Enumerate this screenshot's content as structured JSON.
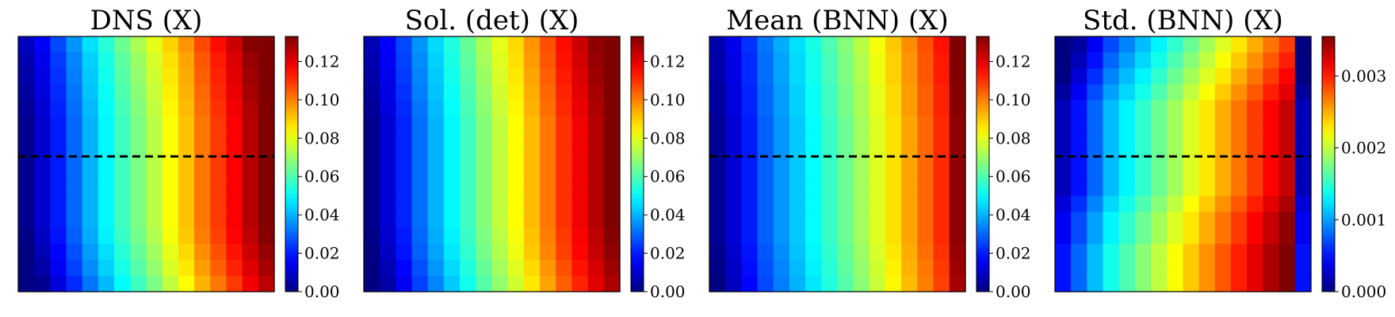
{
  "chart_data": [
    {
      "type": "heatmap",
      "title": "DNS (X)",
      "grid_size": [
        16,
        16
      ],
      "colormap": "jet",
      "vmin": 0.0,
      "vmax": 0.133,
      "colorbar_ticks": [
        "0.00",
        "0.02",
        "0.04",
        "0.06",
        "0.08",
        "0.10",
        "0.12"
      ],
      "colorbar_tick_values": [
        0.0,
        0.02,
        0.04,
        0.06,
        0.08,
        0.1,
        0.12
      ],
      "column_values": [
        0.002,
        0.01,
        0.02,
        0.03,
        0.04,
        0.049,
        0.058,
        0.066,
        0.074,
        0.083,
        0.091,
        0.101,
        0.109,
        0.117,
        0.126,
        0.133
      ],
      "row_offsets": [
        0.006,
        0.004,
        0.003,
        0.002,
        0.001,
        0.0,
        0.0,
        0.0,
        0.0,
        0.0,
        0.0,
        0.0,
        -0.001,
        -0.003,
        -0.005,
        -0.008
      ],
      "dashed_line_fraction": 0.47
    },
    {
      "type": "heatmap",
      "title": "Sol. (det) (X)",
      "grid_size": [
        16,
        16
      ],
      "colormap": "jet",
      "vmin": 0.0,
      "vmax": 0.133,
      "colorbar_ticks": [
        "0.00",
        "0.02",
        "0.04",
        "0.06",
        "0.08",
        "0.10",
        "0.12"
      ],
      "colorbar_tick_values": [
        0.0,
        0.02,
        0.04,
        0.06,
        0.08,
        0.1,
        0.12
      ],
      "column_values": [
        0.002,
        0.011,
        0.021,
        0.031,
        0.04,
        0.049,
        0.058,
        0.067,
        0.075,
        0.083,
        0.092,
        0.101,
        0.11,
        0.118,
        0.126,
        0.133
      ],
      "row_offsets": [
        0.005,
        0.004,
        0.003,
        0.002,
        0.001,
        0.0,
        0.0,
        0.0,
        0.0,
        0.0,
        0.0,
        0.0,
        -0.001,
        -0.002,
        -0.004,
        -0.006
      ],
      "dashed_line_fraction": null
    },
    {
      "type": "heatmap",
      "title": "Mean (BNN) (X)",
      "grid_size": [
        16,
        16
      ],
      "colormap": "jet",
      "vmin": 0.0,
      "vmax": 0.133,
      "colorbar_ticks": [
        "0.00",
        "0.02",
        "0.04",
        "0.06",
        "0.08",
        "0.10",
        "0.12"
      ],
      "colorbar_tick_values": [
        0.0,
        0.02,
        0.04,
        0.06,
        0.08,
        0.1,
        0.12
      ],
      "column_values": [
        0.003,
        0.011,
        0.02,
        0.029,
        0.036,
        0.043,
        0.05,
        0.057,
        0.064,
        0.071,
        0.079,
        0.087,
        0.095,
        0.103,
        0.111,
        0.131
      ],
      "row_offsets": [
        0.003,
        0.002,
        0.002,
        0.001,
        0.001,
        0.0,
        0.0,
        0.0,
        0.0,
        0.0,
        0.0,
        0.0,
        0.0,
        -0.001,
        -0.002,
        -0.003
      ],
      "dashed_line_fraction": 0.47
    },
    {
      "type": "heatmap",
      "title": "Std. (BNN) (X)",
      "grid_size": [
        16,
        16
      ],
      "colormap": "jet",
      "vmin": 0.0,
      "vmax": 0.00355,
      "colorbar_ticks": [
        "0.000",
        "0.001",
        "0.002",
        "0.003"
      ],
      "colorbar_tick_values": [
        0.0,
        0.001,
        0.002,
        0.003
      ],
      "column_values": [
        0.0002,
        0.0005,
        0.0008,
        0.0011,
        0.0013,
        0.0015,
        0.0017,
        0.0019,
        0.0021,
        0.0023,
        0.0025,
        0.0027,
        0.0029,
        0.0031,
        0.0033,
        0.0002
      ],
      "row_offsets": [
        -0.0004,
        -0.0003,
        -0.0002,
        -0.0001,
        0.0,
        0.0,
        0.0,
        0.0,
        0.0,
        0.0,
        0.0001,
        0.0002,
        0.0002,
        0.0003,
        0.0003,
        0.0003
      ],
      "dashed_line_fraction": 0.47
    }
  ]
}
